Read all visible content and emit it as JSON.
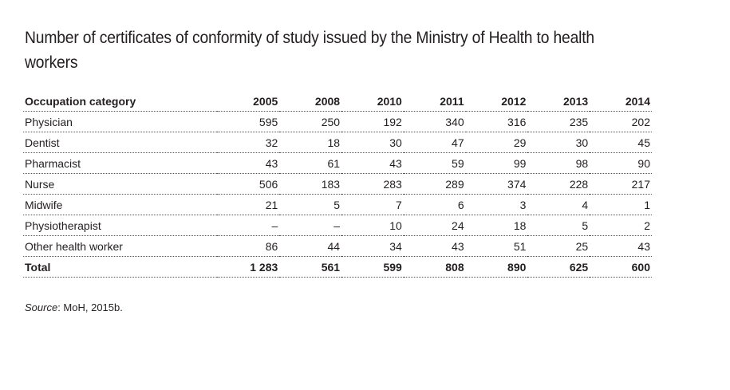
{
  "title": "Number of certificates of conformity of study issued by the Ministry of Health to health workers",
  "table": {
    "header": {
      "category": "Occupation category",
      "years": [
        "2005",
        "2008",
        "2010",
        "2011",
        "2012",
        "2013",
        "2014"
      ]
    },
    "rows": [
      {
        "label": "Physician",
        "values": [
          "595",
          "250",
          "192",
          "340",
          "316",
          "235",
          "202"
        ]
      },
      {
        "label": "Dentist",
        "values": [
          "32",
          "18",
          "30",
          "47",
          "29",
          "30",
          "45"
        ]
      },
      {
        "label": "Pharmacist",
        "values": [
          "43",
          "61",
          "43",
          "59",
          "99",
          "98",
          "90"
        ]
      },
      {
        "label": "Nurse",
        "values": [
          "506",
          "183",
          "283",
          "289",
          "374",
          "228",
          "217"
        ]
      },
      {
        "label": "Midwife",
        "values": [
          "21",
          "5",
          "7",
          "6",
          "3",
          "4",
          "1"
        ]
      },
      {
        "label": "Physiotherapist",
        "values": [
          "–",
          "–",
          "10",
          "24",
          "18",
          "5",
          "2"
        ]
      },
      {
        "label": "Other health worker",
        "values": [
          "86",
          "44",
          "34",
          "43",
          "51",
          "25",
          "43"
        ]
      }
    ],
    "total": {
      "label": "Total",
      "values": [
        "1 283",
        "561",
        "599",
        "808",
        "890",
        "625",
        "600"
      ]
    }
  },
  "source": {
    "label": "Source",
    "text": ": MoH, 2015b."
  }
}
